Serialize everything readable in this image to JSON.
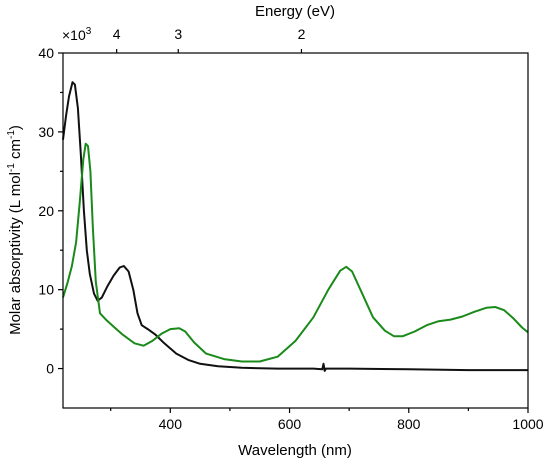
{
  "chart_data": {
    "type": "line",
    "xlabel": "Wavelength (nm)",
    "ylabel_main": "Molar absorptivity (L mol",
    "ylabel_sup1": "-1",
    "ylabel_mid": " cm",
    "ylabel_sup2": "-1",
    "ylabel_end": ")",
    "multiplier_base": "×10",
    "multiplier_exp": "3",
    "top_axis_label": "Energy (eV)",
    "xlim": [
      220,
      1000
    ],
    "ylim": [
      -5,
      40
    ],
    "x_ticks": [
      400,
      600,
      800,
      1000
    ],
    "y_ticks": [
      0,
      10,
      20,
      30,
      40
    ],
    "top_ticks": [
      {
        "ev": 4,
        "label": "4"
      },
      {
        "ev": 3,
        "label": "3"
      },
      {
        "ev": 2,
        "label": "2"
      }
    ],
    "series": [
      {
        "color": "#111111",
        "points": [
          [
            220,
            29
          ],
          [
            225,
            32
          ],
          [
            230,
            34.5
          ],
          [
            236,
            36.3
          ],
          [
            240,
            36
          ],
          [
            245,
            33
          ],
          [
            250,
            27
          ],
          [
            255,
            20
          ],
          [
            260,
            15
          ],
          [
            265,
            12
          ],
          [
            272,
            9.5
          ],
          [
            278,
            8.6
          ],
          [
            285,
            9
          ],
          [
            295,
            10.5
          ],
          [
            305,
            11.8
          ],
          [
            315,
            12.8
          ],
          [
            322,
            13
          ],
          [
            330,
            12.3
          ],
          [
            338,
            10
          ],
          [
            345,
            7
          ],
          [
            352,
            5.5
          ],
          [
            362,
            5
          ],
          [
            375,
            4.3
          ],
          [
            390,
            3.2
          ],
          [
            410,
            1.9
          ],
          [
            430,
            1.1
          ],
          [
            450,
            0.6
          ],
          [
            480,
            0.3
          ],
          [
            520,
            0.1
          ],
          [
            580,
            0
          ],
          [
            640,
            0
          ],
          [
            655,
            -0.1
          ],
          [
            657,
            0.6
          ],
          [
            659,
            -0.3
          ],
          [
            661,
            0
          ],
          [
            700,
            0
          ],
          [
            800,
            -0.1
          ],
          [
            900,
            -0.2
          ],
          [
            1000,
            -0.2
          ]
        ]
      },
      {
        "color": "#1a8a1a",
        "points": [
          [
            220,
            9
          ],
          [
            228,
            11
          ],
          [
            235,
            13
          ],
          [
            242,
            16
          ],
          [
            248,
            21
          ],
          [
            254,
            26.5
          ],
          [
            258,
            28.5
          ],
          [
            262,
            28.2
          ],
          [
            266,
            25
          ],
          [
            270,
            18
          ],
          [
            275,
            11
          ],
          [
            282,
            7
          ],
          [
            292,
            6.2
          ],
          [
            305,
            5.3
          ],
          [
            320,
            4.3
          ],
          [
            340,
            3.2
          ],
          [
            355,
            2.9
          ],
          [
            370,
            3.5
          ],
          [
            385,
            4.4
          ],
          [
            400,
            5
          ],
          [
            415,
            5.1
          ],
          [
            425,
            4.7
          ],
          [
            440,
            3.3
          ],
          [
            460,
            1.9
          ],
          [
            490,
            1.2
          ],
          [
            520,
            0.9
          ],
          [
            550,
            0.9
          ],
          [
            580,
            1.5
          ],
          [
            610,
            3.5
          ],
          [
            640,
            6.5
          ],
          [
            665,
            10
          ],
          [
            685,
            12.4
          ],
          [
            695,
            12.9
          ],
          [
            705,
            12.3
          ],
          [
            720,
            9.8
          ],
          [
            740,
            6.5
          ],
          [
            760,
            4.8
          ],
          [
            775,
            4.1
          ],
          [
            790,
            4.1
          ],
          [
            810,
            4.7
          ],
          [
            830,
            5.5
          ],
          [
            850,
            6
          ],
          [
            870,
            6.2
          ],
          [
            890,
            6.6
          ],
          [
            910,
            7.2
          ],
          [
            930,
            7.7
          ],
          [
            945,
            7.8
          ],
          [
            960,
            7.4
          ],
          [
            975,
            6.4
          ],
          [
            990,
            5.2
          ],
          [
            1000,
            4.6
          ]
        ]
      }
    ]
  }
}
